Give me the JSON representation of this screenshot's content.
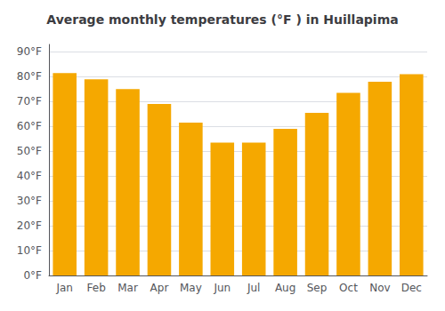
{
  "chart_data": {
    "type": "bar",
    "title": "Average monthly temperatures (°F ) in Huillapima",
    "categories": [
      "Jan",
      "Feb",
      "Mar",
      "Apr",
      "May",
      "Jun",
      "Jul",
      "Aug",
      "Sep",
      "Oct",
      "Nov",
      "Dec"
    ],
    "values": [
      81.5,
      79,
      75,
      69,
      61.5,
      53.5,
      53.5,
      59,
      65.5,
      73.5,
      78,
      81
    ],
    "color": "#F5A800",
    "ylim": [
      0,
      93
    ],
    "yticks": [
      {
        "value": 0,
        "label": "0°F"
      },
      {
        "value": 10,
        "label": "10°F"
      },
      {
        "value": 20,
        "label": "20°F"
      },
      {
        "value": 30,
        "label": "30°F"
      },
      {
        "value": 40,
        "label": "40°F"
      },
      {
        "value": 50,
        "label": "50°F"
      },
      {
        "value": 60,
        "label": "60°F"
      },
      {
        "value": 70,
        "label": "70°F"
      },
      {
        "value": 80,
        "label": "80°F"
      },
      {
        "value": 90,
        "label": "90°F"
      }
    ],
    "grid": true
  }
}
